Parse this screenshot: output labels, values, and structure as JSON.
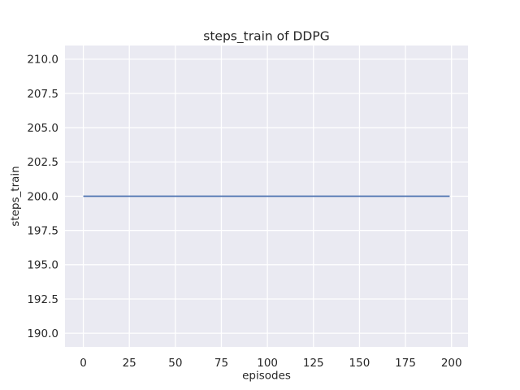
{
  "chart_data": {
    "type": "line",
    "title": "steps_train of DDPG",
    "xlabel": "episodes",
    "ylabel": "steps_train",
    "xlim": [
      -9.95,
      208.95
    ],
    "ylim": [
      189.0,
      211.0
    ],
    "xticks": {
      "values": [
        0,
        25,
        50,
        75,
        100,
        125,
        150,
        175,
        200
      ],
      "labels": [
        "0",
        "25",
        "50",
        "75",
        "100",
        "125",
        "150",
        "175",
        "200"
      ]
    },
    "yticks": {
      "values": [
        190.0,
        192.5,
        195.0,
        197.5,
        200.0,
        202.5,
        205.0,
        207.5,
        210.0
      ],
      "labels": [
        "190.0",
        "192.5",
        "195.0",
        "197.5",
        "200.0",
        "202.5",
        "205.0",
        "207.5",
        "210.0"
      ]
    },
    "grid": true,
    "legend": "none",
    "style": "seaborn-darkgrid",
    "plot_background": "#EAEAF2",
    "grid_color": "#FFFFFF",
    "text_color": "#262626",
    "series": [
      {
        "name": "steps_train",
        "color": "#4C72B0",
        "x": [
          0,
          199
        ],
        "y": [
          200,
          200
        ]
      }
    ]
  }
}
